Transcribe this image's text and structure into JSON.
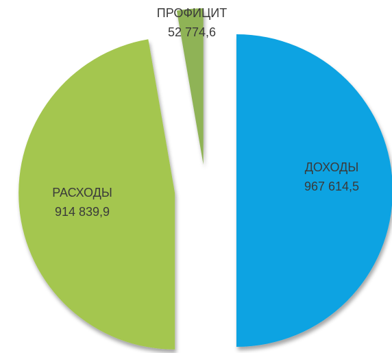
{
  "chart_data": {
    "type": "pie",
    "categories": [
      "ДОХОДЫ",
      "РАСХОДЫ",
      "ПРОФИЦИТ"
    ],
    "values": [
      967614.5,
      914839.9,
      52774.6
    ],
    "value_labels": [
      "967 614,5",
      "914 839,9",
      "52 774,6"
    ],
    "colors": [
      "#0aa3e2",
      "#a4c650",
      "#8fb356"
    ]
  }
}
